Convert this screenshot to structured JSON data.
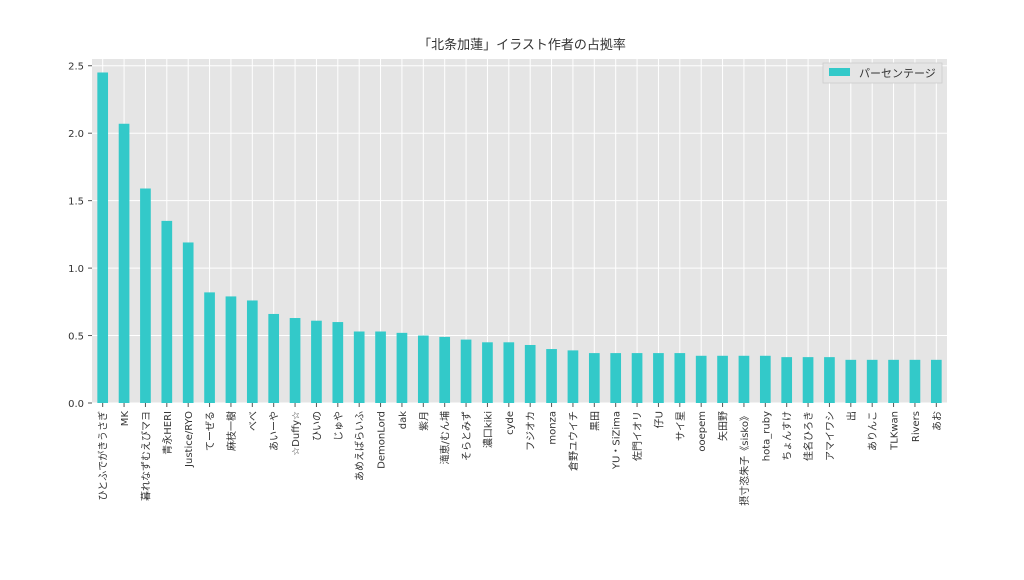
{
  "chart_data": {
    "type": "bar",
    "title": "「北条加蓮」イラスト作者の占拠率",
    "xlabel": "",
    "ylabel": "",
    "ylim": [
      0,
      2.55
    ],
    "yticks": [
      "0.0",
      "0.5",
      "1.0",
      "1.5",
      "2.0",
      "2.5"
    ],
    "grid": true,
    "legend_position": "top-right",
    "series": [
      {
        "name": "パーセンテージ",
        "color": "#33c9c9",
        "values": [
          2.45,
          2.07,
          1.59,
          1.35,
          1.19,
          0.82,
          0.79,
          0.76,
          0.66,
          0.63,
          0.61,
          0.6,
          0.53,
          0.53,
          0.52,
          0.5,
          0.49,
          0.47,
          0.45,
          0.45,
          0.43,
          0.4,
          0.39,
          0.37,
          0.37,
          0.37,
          0.37,
          0.37,
          0.35,
          0.35,
          0.35,
          0.35,
          0.34,
          0.34,
          0.34,
          0.32,
          0.32,
          0.32,
          0.32,
          0.32
        ]
      }
    ],
    "categories": [
      "ひとふでがきうさぎ",
      "MK",
      "暮れなずむえびマヨ",
      "青永HERI",
      "Justice/RYO",
      "てーぜる",
      "麻枝一樹",
      "べべ",
      "あいーや",
      "☆Duffy☆",
      "ひいの",
      "じゅや",
      "あめえばらいふ",
      "DemonLord",
      "dak",
      "紫月",
      "滝恵/むん埔",
      "そらとみず",
      "濃口kiki",
      "cyde",
      "フジオカ",
      "monza",
      "倉野ユウイチ",
      "黒田",
      "YU・SiZima",
      "佐門イオリ",
      "仔U",
      "サイ星",
      "ooepem",
      "矢田野",
      "摂寸恣朱子《sisko》",
      "hota_ruby",
      "ちょんすけ",
      "佳名ひろき",
      "アマイワシ",
      "出",
      "ありんこ",
      "TLKwan",
      "Rivers",
      "あお"
    ]
  }
}
